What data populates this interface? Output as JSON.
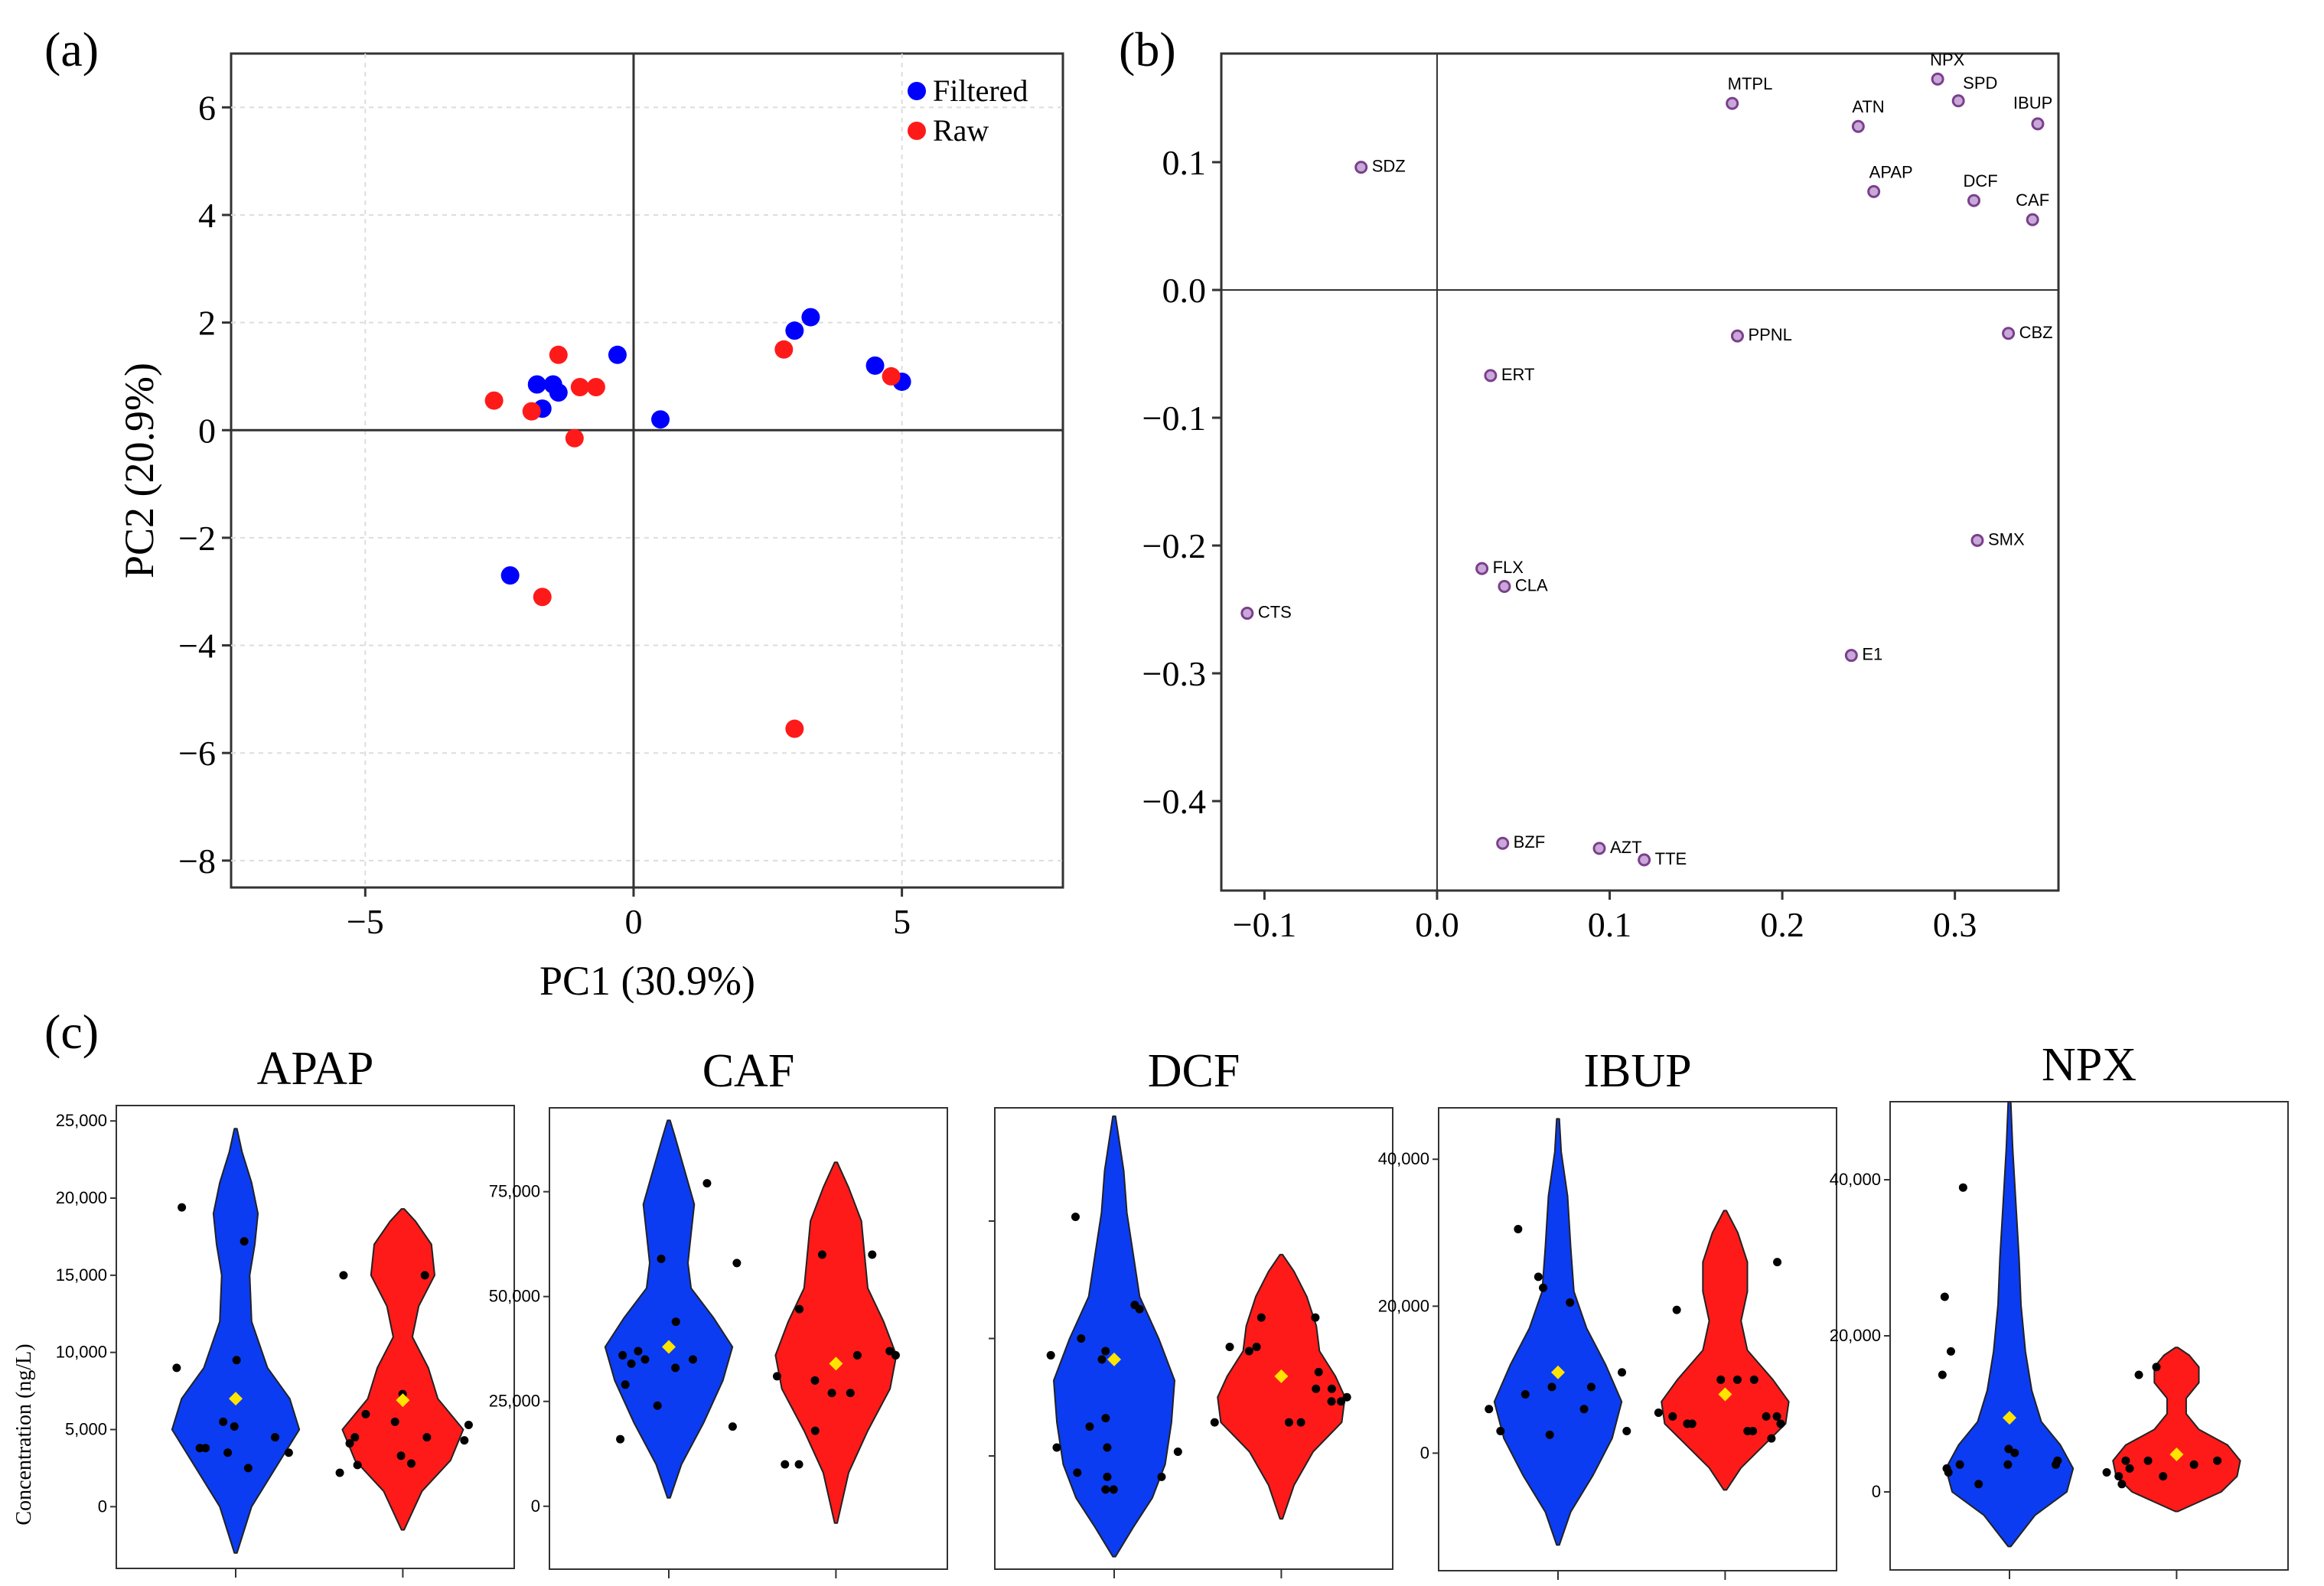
{
  "figure": {
    "labels": {
      "a": "(a)",
      "b": "(b)",
      "c": "(c)"
    }
  },
  "colors": {
    "filtered": "#0000ff",
    "raw": "#ff1a1a",
    "violin_blue": "#0b3cf2",
    "violin_red": "#ff1a1a",
    "mean": "#ffe400",
    "loading": "#7b3f8c"
  },
  "chart_data": [
    {
      "type": "scatter",
      "title": "(a)",
      "xlabel": "PC1 (30.9%)",
      "ylabel": "PC2 (20.9%)",
      "xlim": [
        -7.5,
        8
      ],
      "ylim": [
        -8.5,
        7
      ],
      "xticks": [
        -5,
        0,
        5
      ],
      "xtick_labels": [
        "−5",
        "0",
        "5"
      ],
      "yticks": [
        -8,
        -6,
        -4,
        -2,
        0,
        2,
        4,
        6
      ],
      "ytick_labels": [
        "−8",
        "−6",
        "−4",
        "−2",
        "0",
        "2",
        "4",
        "6"
      ],
      "grid": true,
      "legend": {
        "position": "top-right",
        "entries": [
          "Filtered",
          "Raw"
        ]
      },
      "series": [
        {
          "name": "Filtered",
          "color": "#0000ff",
          "points": [
            [
              -1.8,
              0.85
            ],
            [
              -1.5,
              0.85
            ],
            [
              -1.4,
              0.7
            ],
            [
              -1.7,
              0.4
            ],
            [
              -0.3,
              1.4
            ],
            [
              0.5,
              0.2
            ],
            [
              3.0,
              1.85
            ],
            [
              3.3,
              2.1
            ],
            [
              4.5,
              1.2
            ],
            [
              5.0,
              0.9
            ],
            [
              -2.3,
              -2.7
            ]
          ]
        },
        {
          "name": "Raw",
          "color": "#ff1a1a",
          "points": [
            [
              -2.6,
              0.55
            ],
            [
              -1.9,
              0.35
            ],
            [
              -1.4,
              1.4
            ],
            [
              -1.0,
              0.8
            ],
            [
              -0.7,
              0.8
            ],
            [
              -1.1,
              -0.15
            ],
            [
              2.8,
              1.5
            ],
            [
              4.8,
              1.0
            ],
            [
              -1.7,
              -3.1
            ],
            [
              3.0,
              -5.55
            ]
          ]
        }
      ]
    },
    {
      "type": "scatter",
      "title": "(b)",
      "xlabel": "",
      "ylabel": "",
      "xlim": [
        -0.125,
        0.36
      ],
      "ylim": [
        -0.47,
        0.185
      ],
      "xticks": [
        -0.1,
        0.0,
        0.1,
        0.2,
        0.3
      ],
      "xtick_labels": [
        "−0.1",
        "0.0",
        "0.1",
        "0.2",
        "0.3"
      ],
      "yticks": [
        0.1,
        0.0,
        -0.1,
        -0.2,
        -0.3,
        -0.4
      ],
      "ytick_labels": [
        "0.1",
        "0.0",
        "−0.1",
        "−0.2",
        "−0.3",
        "−0.4"
      ],
      "grid": false,
      "points": [
        {
          "label": "NPX",
          "x": 0.29,
          "y": 0.165
        },
        {
          "label": "MTPL",
          "x": 0.171,
          "y": 0.146
        },
        {
          "label": "SPD",
          "x": 0.302,
          "y": 0.148
        },
        {
          "label": "ATN",
          "x": 0.244,
          "y": 0.128
        },
        {
          "label": "IBUP",
          "x": 0.348,
          "y": 0.13
        },
        {
          "label": "SDZ",
          "x": -0.044,
          "y": 0.096
        },
        {
          "label": "APAP",
          "x": 0.253,
          "y": 0.077
        },
        {
          "label": "DCF",
          "x": 0.311,
          "y": 0.07
        },
        {
          "label": "CAF",
          "x": 0.345,
          "y": 0.055
        },
        {
          "label": "PPNL",
          "x": 0.174,
          "y": -0.036
        },
        {
          "label": "CBZ",
          "x": 0.331,
          "y": -0.034
        },
        {
          "label": "ERT",
          "x": 0.031,
          "y": -0.067
        },
        {
          "label": "SMX",
          "x": 0.313,
          "y": -0.196
        },
        {
          "label": "FLX",
          "x": 0.026,
          "y": -0.218
        },
        {
          "label": "CLA",
          "x": 0.039,
          "y": -0.232
        },
        {
          "label": "CTS",
          "x": -0.11,
          "y": -0.253
        },
        {
          "label": "E1",
          "x": 0.24,
          "y": -0.286
        },
        {
          "label": "BZF",
          "x": 0.038,
          "y": -0.433
        },
        {
          "label": "AZT",
          "x": 0.094,
          "y": -0.437
        },
        {
          "label": "TTE",
          "x": 0.12,
          "y": -0.446
        }
      ]
    },
    {
      "type": "violin",
      "title": "APAP",
      "ylabel": "Concentration  (ng/L)",
      "ylim": [
        -4000,
        26000
      ],
      "yticks": [
        0,
        5000,
        10000,
        15000,
        20000,
        25000
      ],
      "ytick_labels": [
        "0",
        "5,000",
        "10,000",
        "15,000",
        "20,000",
        "25,000"
      ],
      "series": [
        {
          "name": "Filtered",
          "mean": 7000,
          "range": [
            -3000,
            24500
          ],
          "density": [
            [
              -3000,
              0.02
            ],
            [
              0,
              0.25
            ],
            [
              3000,
              0.7
            ],
            [
              5000,
              1.0
            ],
            [
              7000,
              0.85
            ],
            [
              9000,
              0.5
            ],
            [
              12000,
              0.25
            ],
            [
              15000,
              0.22
            ],
            [
              17000,
              0.3
            ],
            [
              19000,
              0.35
            ],
            [
              21000,
              0.25
            ],
            [
              23000,
              0.1
            ],
            [
              24500,
              0.02
            ]
          ],
          "points": [
            5200,
            17200,
            19400,
            3800,
            3500,
            9500,
            9000,
            3500,
            2500,
            5500,
            3800,
            4500
          ]
        },
        {
          "name": "Raw",
          "mean": 6900,
          "range": [
            -1500,
            19300
          ],
          "density": [
            [
              -1500,
              0.02
            ],
            [
              1000,
              0.3
            ],
            [
              3000,
              0.75
            ],
            [
              5000,
              0.95
            ],
            [
              7000,
              0.55
            ],
            [
              9000,
              0.4
            ],
            [
              11000,
              0.15
            ],
            [
              13000,
              0.25
            ],
            [
              15000,
              0.5
            ],
            [
              17000,
              0.45
            ],
            [
              18500,
              0.2
            ],
            [
              19300,
              0.02
            ]
          ],
          "points": [
            15000,
            15000,
            7300,
            6000,
            4500,
            4500,
            2800,
            3300,
            2700,
            2200,
            4300,
            5300,
            4100,
            5500
          ]
        }
      ]
    },
    {
      "type": "violin",
      "title": "CAF",
      "ylabel": "",
      "ylim": [
        -15000,
        95000
      ],
      "yticks": [
        0,
        25000,
        50000,
        75000
      ],
      "ytick_labels": [
        "0",
        "25,000",
        "50,000",
        "75,000"
      ],
      "series": [
        {
          "name": "Filtered",
          "mean": 38000,
          "range": [
            2000,
            92000
          ],
          "density": [
            [
              2000,
              0.02
            ],
            [
              10000,
              0.2
            ],
            [
              20000,
              0.55
            ],
            [
              30000,
              0.85
            ],
            [
              38000,
              1.0
            ],
            [
              45000,
              0.7
            ],
            [
              52000,
              0.35
            ],
            [
              58000,
              0.3
            ],
            [
              65000,
              0.35
            ],
            [
              72000,
              0.4
            ],
            [
              80000,
              0.25
            ],
            [
              88000,
              0.1
            ],
            [
              92000,
              0.02
            ]
          ],
          "points": [
            19000,
            29000,
            24000,
            44000,
            35000,
            37000,
            36000,
            58000,
            59000,
            34000,
            33000,
            35000,
            16000,
            77000
          ]
        },
        {
          "name": "Raw",
          "mean": 34000,
          "range": [
            -4000,
            82000
          ],
          "density": [
            [
              -4000,
              0.02
            ],
            [
              8000,
              0.2
            ],
            [
              18000,
              0.5
            ],
            [
              28000,
              0.85
            ],
            [
              36000,
              0.95
            ],
            [
              44000,
              0.75
            ],
            [
              52000,
              0.5
            ],
            [
              60000,
              0.45
            ],
            [
              68000,
              0.4
            ],
            [
              76000,
              0.2
            ],
            [
              82000,
              0.02
            ]
          ],
          "points": [
            18000,
            30000,
            31000,
            36000,
            47000,
            37000,
            27000,
            10000,
            27000,
            60000,
            60000,
            36000,
            10000
          ]
        }
      ]
    },
    {
      "type": "violin",
      "title": "DCF",
      "ylabel": "",
      "ylim": [
        -5,
        105
      ],
      "yticks": [],
      "ytick_labels": [],
      "series": [
        {
          "name": "Filtered",
          "mean": 45,
          "range": [
            -2,
            103
          ],
          "density": [
            [
              -2,
              0.02
            ],
            [
              5,
              0.3
            ],
            [
              12,
              0.6
            ],
            [
              20,
              0.8
            ],
            [
              30,
              0.9
            ],
            [
              40,
              0.95
            ],
            [
              50,
              0.7
            ],
            [
              60,
              0.4
            ],
            [
              70,
              0.3
            ],
            [
              80,
              0.2
            ],
            [
              90,
              0.15
            ],
            [
              100,
              0.05
            ],
            [
              103,
              0.02
            ]
          ],
          "points": [
            79,
            24,
            24,
            46,
            45,
            57,
            58,
            23,
            29,
            47,
            14,
            14,
            17,
            17,
            31,
            50,
            18
          ]
        },
        {
          "name": "Raw",
          "mean": 41,
          "range": [
            7,
            70
          ],
          "density": [
            [
              7,
              0.02
            ],
            [
              15,
              0.2
            ],
            [
              23,
              0.5
            ],
            [
              30,
              0.95
            ],
            [
              36,
              1.0
            ],
            [
              41,
              0.85
            ],
            [
              47,
              0.6
            ],
            [
              53,
              0.55
            ],
            [
              60,
              0.4
            ],
            [
              66,
              0.2
            ],
            [
              70,
              0.02
            ]
          ],
          "points": [
            55,
            48,
            47,
            42,
            35,
            36,
            35,
            38,
            38,
            30,
            30,
            30,
            48,
            55
          ]
        }
      ]
    },
    {
      "type": "violin",
      "title": "IBUP",
      "ylabel": "",
      "ylim": [
        -16000,
        47000
      ],
      "yticks": [
        0,
        20000,
        40000
      ],
      "ytick_labels": [
        "0",
        "20,000",
        "40,000"
      ],
      "series": [
        {
          "name": "Filtered",
          "mean": 11000,
          "range": [
            -12500,
            45500
          ],
          "density": [
            [
              -12500,
              0.02
            ],
            [
              -8000,
              0.2
            ],
            [
              -3000,
              0.55
            ],
            [
              2000,
              0.85
            ],
            [
              7000,
              1.0
            ],
            [
              12000,
              0.75
            ],
            [
              17000,
              0.45
            ],
            [
              22000,
              0.25
            ],
            [
              28000,
              0.2
            ],
            [
              35000,
              0.15
            ],
            [
              41000,
              0.05
            ],
            [
              45500,
              0.02
            ]
          ],
          "points": [
            30500,
            22500,
            6000,
            9000,
            8000,
            11000,
            6000,
            24000,
            20500,
            2500,
            3000,
            3000,
            9000
          ]
        },
        {
          "name": "Raw",
          "mean": 8000,
          "range": [
            -5000,
            33000
          ],
          "density": [
            [
              -5000,
              0.02
            ],
            [
              -2000,
              0.25
            ],
            [
              1000,
              0.6
            ],
            [
              4000,
              0.95
            ],
            [
              7000,
              1.0
            ],
            [
              10000,
              0.75
            ],
            [
              14000,
              0.35
            ],
            [
              18000,
              0.25
            ],
            [
              22000,
              0.35
            ],
            [
              26000,
              0.35
            ],
            [
              30000,
              0.2
            ],
            [
              33000,
              0.02
            ]
          ],
          "points": [
            26000,
            10000,
            10000,
            5000,
            5000,
            4000,
            4000,
            5500,
            19500,
            10000,
            3000,
            3000,
            5000,
            4000,
            2000
          ]
        }
      ]
    },
    {
      "type": "violin",
      "title": "NPX",
      "ylabel": "",
      "ylim": [
        -10000,
        50000
      ],
      "yticks": [
        0,
        20000,
        40000
      ],
      "ytick_labels": [
        "0",
        "20,000",
        "40,000"
      ],
      "series": [
        {
          "name": "Filtered",
          "mean": 9500,
          "range": [
            -7000,
            50000
          ],
          "density": [
            [
              -7000,
              0.02
            ],
            [
              -3000,
              0.4
            ],
            [
              0,
              0.9
            ],
            [
              3000,
              1.0
            ],
            [
              6000,
              0.8
            ],
            [
              9000,
              0.5
            ],
            [
              13000,
              0.35
            ],
            [
              18000,
              0.25
            ],
            [
              24000,
              0.18
            ],
            [
              30000,
              0.15
            ],
            [
              37000,
              0.1
            ],
            [
              44000,
              0.05
            ],
            [
              50000,
              0.02
            ]
          ],
          "points": [
            39000,
            25000,
            18000,
            15000,
            5000,
            3500,
            4000,
            3500,
            5500,
            3000,
            1000,
            3500,
            2500
          ]
        },
        {
          "name": "Raw",
          "mean": 4800,
          "range": [
            -2500,
            18500
          ],
          "density": [
            [
              -2500,
              0.02
            ],
            [
              0,
              0.7
            ],
            [
              2000,
              0.95
            ],
            [
              4000,
              1.0
            ],
            [
              6000,
              0.8
            ],
            [
              8000,
              0.35
            ],
            [
              10000,
              0.15
            ],
            [
              12000,
              0.15
            ],
            [
              14000,
              0.35
            ],
            [
              16000,
              0.35
            ],
            [
              17500,
              0.2
            ],
            [
              18500,
              0.02
            ]
          ],
          "points": [
            16000,
            15000,
            4000,
            4000,
            4000,
            3000,
            2500,
            3500,
            2000,
            2000,
            1000
          ]
        }
      ]
    }
  ]
}
